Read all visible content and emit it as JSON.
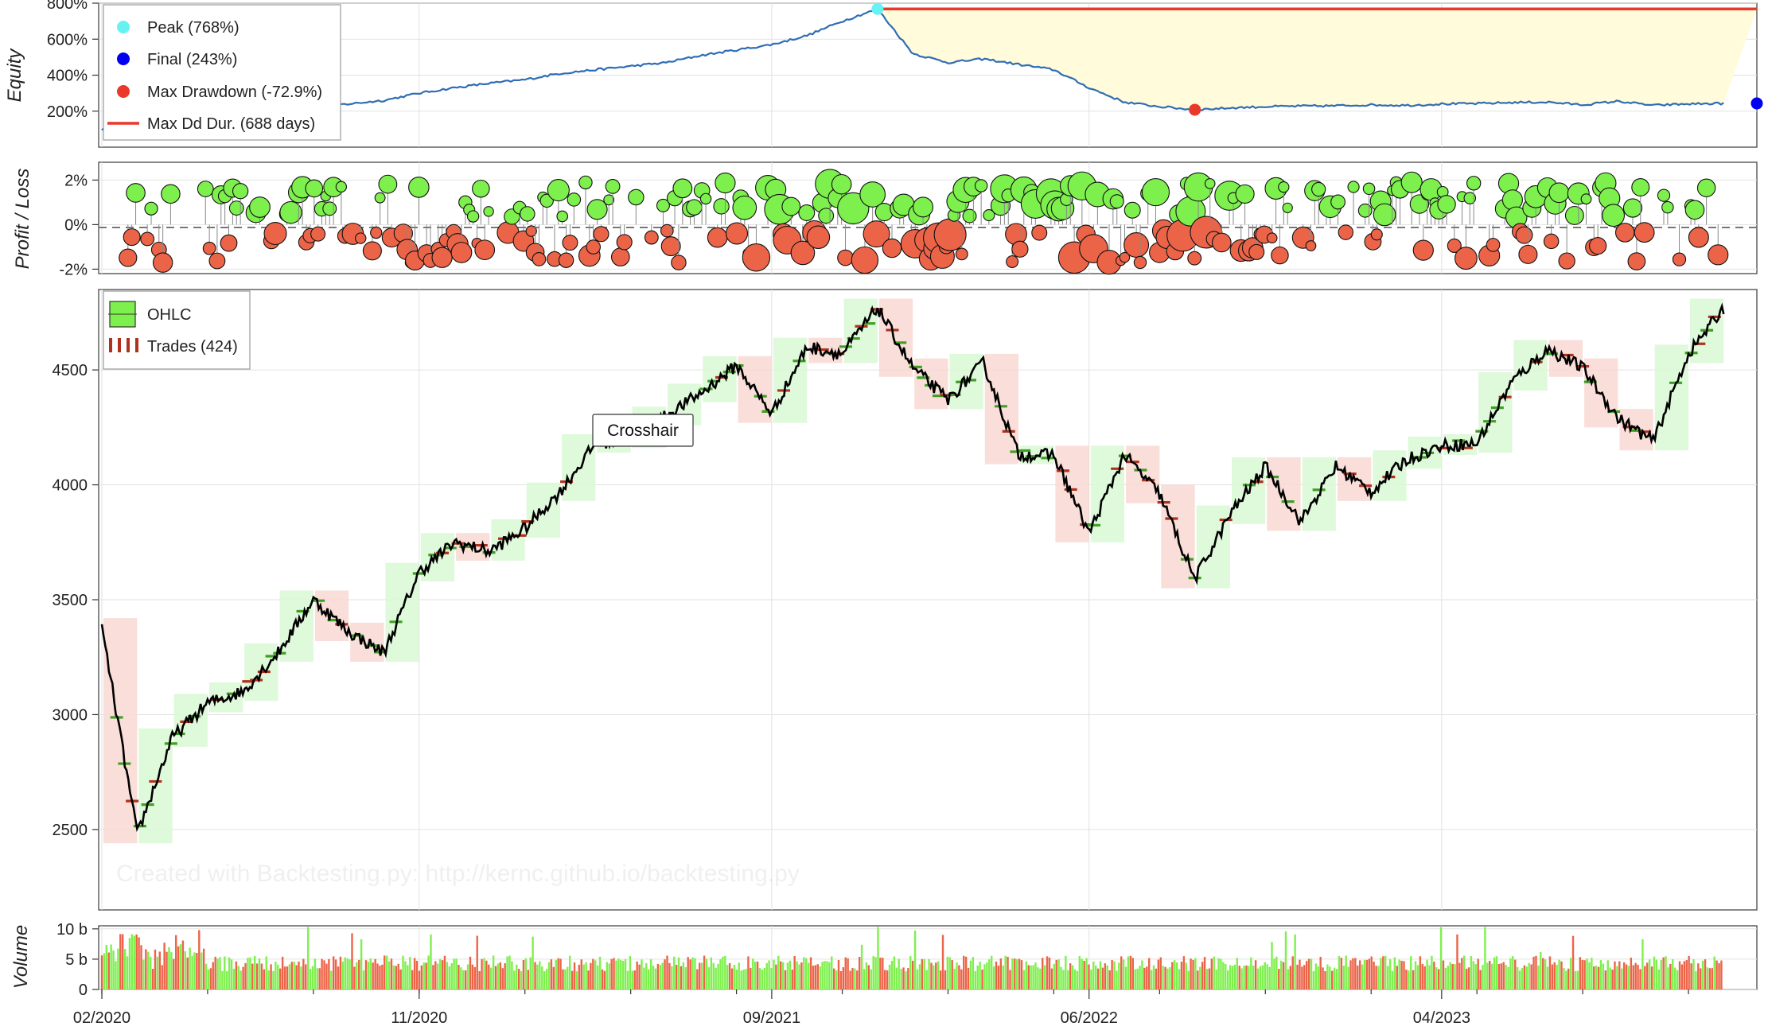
{
  "chart_data": [
    {
      "type": "line",
      "panel": "equity",
      "ylabel": "Equity",
      "yticks": [
        "200%",
        "400%",
        "600%",
        "800%"
      ],
      "ylim": [
        0,
        800
      ],
      "legend": [
        {
          "label": "Peak (768%)",
          "color": "#66f2f2"
        },
        {
          "label": "Final (243%)",
          "color": "#0000ee"
        },
        {
          "label": "Max Drawdown (-72.9%)",
          "color": "#e8392a"
        },
        {
          "label": "Max Dd Dur. (688 days)",
          "color": "#e8392a"
        }
      ],
      "legend_placement": "top-left",
      "peak": {
        "x": "2021-12",
        "y": 768
      },
      "final": {
        "x": "2023-12",
        "y": 243
      },
      "max_drawdown_point": {
        "x": "2022-09",
        "y": 208
      },
      "max_dd_duration": {
        "from": "2021-12",
        "to": "2023-12",
        "y": 768
      },
      "series": [
        {
          "values": [
            [
              "2020-02",
              100
            ],
            [
              "2020-03",
              160
            ],
            [
              "2020-04",
              175
            ],
            [
              "2020-05",
              185
            ],
            [
              "2020-06",
              200
            ],
            [
              "2020-07",
              210
            ],
            [
              "2020-08",
              225
            ],
            [
              "2020-09",
              240
            ],
            [
              "2020-10",
              260
            ],
            [
              "2020-11",
              300
            ],
            [
              "2020-12",
              330
            ],
            [
              "2021-01",
              355
            ],
            [
              "2021-02",
              375
            ],
            [
              "2021-03",
              410
            ],
            [
              "2021-04",
              430
            ],
            [
              "2021-05",
              450
            ],
            [
              "2021-06",
              470
            ],
            [
              "2021-07",
              510
            ],
            [
              "2021-08",
              540
            ],
            [
              "2021-09",
              570
            ],
            [
              "2021-10",
              620
            ],
            [
              "2021-11",
              700
            ],
            [
              "2021-12",
              768
            ],
            [
              "2022-01",
              520
            ],
            [
              "2022-02",
              470
            ],
            [
              "2022-03",
              490
            ],
            [
              "2022-04",
              460
            ],
            [
              "2022-05",
              430
            ],
            [
              "2022-06",
              330
            ],
            [
              "2022-07",
              250
            ],
            [
              "2022-08",
              225
            ],
            [
              "2022-09",
              208
            ],
            [
              "2022-10",
              218
            ],
            [
              "2022-11",
              225
            ],
            [
              "2022-12",
              228
            ],
            [
              "2023-01",
              230
            ],
            [
              "2023-02",
              235
            ],
            [
              "2023-03",
              232
            ],
            [
              "2023-04",
              240
            ],
            [
              "2023-05",
              242
            ],
            [
              "2023-06",
              248
            ],
            [
              "2023-07",
              250
            ],
            [
              "2023-08",
              235
            ],
            [
              "2023-09",
              255
            ],
            [
              "2023-10",
              232
            ],
            [
              "2023-11",
              240
            ],
            [
              "2023-12",
              243
            ]
          ]
        }
      ]
    },
    {
      "type": "scatter",
      "panel": "profit_loss",
      "ylabel": "Profit / Loss",
      "yticks": [
        "2%",
        "0%",
        "-2%"
      ],
      "ylim": [
        -2.2,
        2.8
      ],
      "note": "424 trades; green = profit, red = loss, marker size grows with trade size",
      "colors": {
        "profit": "#7ef04d",
        "loss": "#ec6448"
      }
    },
    {
      "type": "candlestick",
      "panel": "ohlc",
      "yticks": [
        "2500",
        "3000",
        "3500",
        "4000",
        "4500"
      ],
      "ylim": [
        2150,
        4850
      ],
      "legend": [
        {
          "label": "OHLC",
          "color": "#7ef04d"
        },
        {
          "label": "Trades (424)",
          "color": "#b0321e"
        }
      ],
      "legend_placement": "top-left",
      "close_series": [
        [
          "2020-02",
          3380
        ],
        [
          "2020-03",
          2480
        ],
        [
          "2020-04",
          2900
        ],
        [
          "2020-05",
          3050
        ],
        [
          "2020-06",
          3100
        ],
        [
          "2020-07",
          3270
        ],
        [
          "2020-08",
          3500
        ],
        [
          "2020-09",
          3360
        ],
        [
          "2020-10",
          3270
        ],
        [
          "2020-11",
          3620
        ],
        [
          "2020-12",
          3750
        ],
        [
          "2021-01",
          3710
        ],
        [
          "2021-02",
          3810
        ],
        [
          "2021-03",
          3970
        ],
        [
          "2021-04",
          4180
        ],
        [
          "2021-05",
          4200
        ],
        [
          "2021-06",
          4300
        ],
        [
          "2021-07",
          4400
        ],
        [
          "2021-08",
          4520
        ],
        [
          "2021-09",
          4310
        ],
        [
          "2021-10",
          4600
        ],
        [
          "2021-11",
          4570
        ],
        [
          "2021-12",
          4770
        ],
        [
          "2022-01",
          4510
        ],
        [
          "2022-02",
          4370
        ],
        [
          "2022-03",
          4530
        ],
        [
          "2022-04",
          4130
        ],
        [
          "2022-05",
          4130
        ],
        [
          "2022-06",
          3790
        ],
        [
          "2022-07",
          4130
        ],
        [
          "2022-08",
          3960
        ],
        [
          "2022-09",
          3590
        ],
        [
          "2022-10",
          3870
        ],
        [
          "2022-11",
          4080
        ],
        [
          "2022-12",
          3840
        ],
        [
          "2023-01",
          4080
        ],
        [
          "2023-02",
          3970
        ],
        [
          "2023-03",
          4110
        ],
        [
          "2023-04",
          4170
        ],
        [
          "2023-05",
          4180
        ],
        [
          "2023-06",
          4450
        ],
        [
          "2023-07",
          4590
        ],
        [
          "2023-08",
          4510
        ],
        [
          "2023-09",
          4290
        ],
        [
          "2023-10",
          4190
        ],
        [
          "2023-11",
          4570
        ],
        [
          "2023-12",
          4770
        ]
      ]
    },
    {
      "type": "bar",
      "panel": "volume",
      "ylabel": "Volume",
      "yticks": [
        "0",
        "5 b",
        "10 b"
      ],
      "ylim": [
        0,
        10.5
      ],
      "colors": {
        "up": "#7ef04d",
        "down": "#ec6448"
      }
    }
  ],
  "x_axis": {
    "tick_labels": [
      "02/2020",
      "11/2020",
      "09/2021",
      "06/2022",
      "04/2023"
    ],
    "start": "2020-02",
    "end": "2023-12"
  },
  "tooltip": {
    "label": "Crosshair"
  },
  "watermark": {
    "text": "Created with Backtesting.py: http://kernc.github.io/backtesting.py"
  },
  "colors": {
    "equity_line": "#2f6db5",
    "drawdown_fill": "#fffbdb",
    "profit": "#7ef04d",
    "loss": "#ec6448",
    "candle": "#000000"
  }
}
